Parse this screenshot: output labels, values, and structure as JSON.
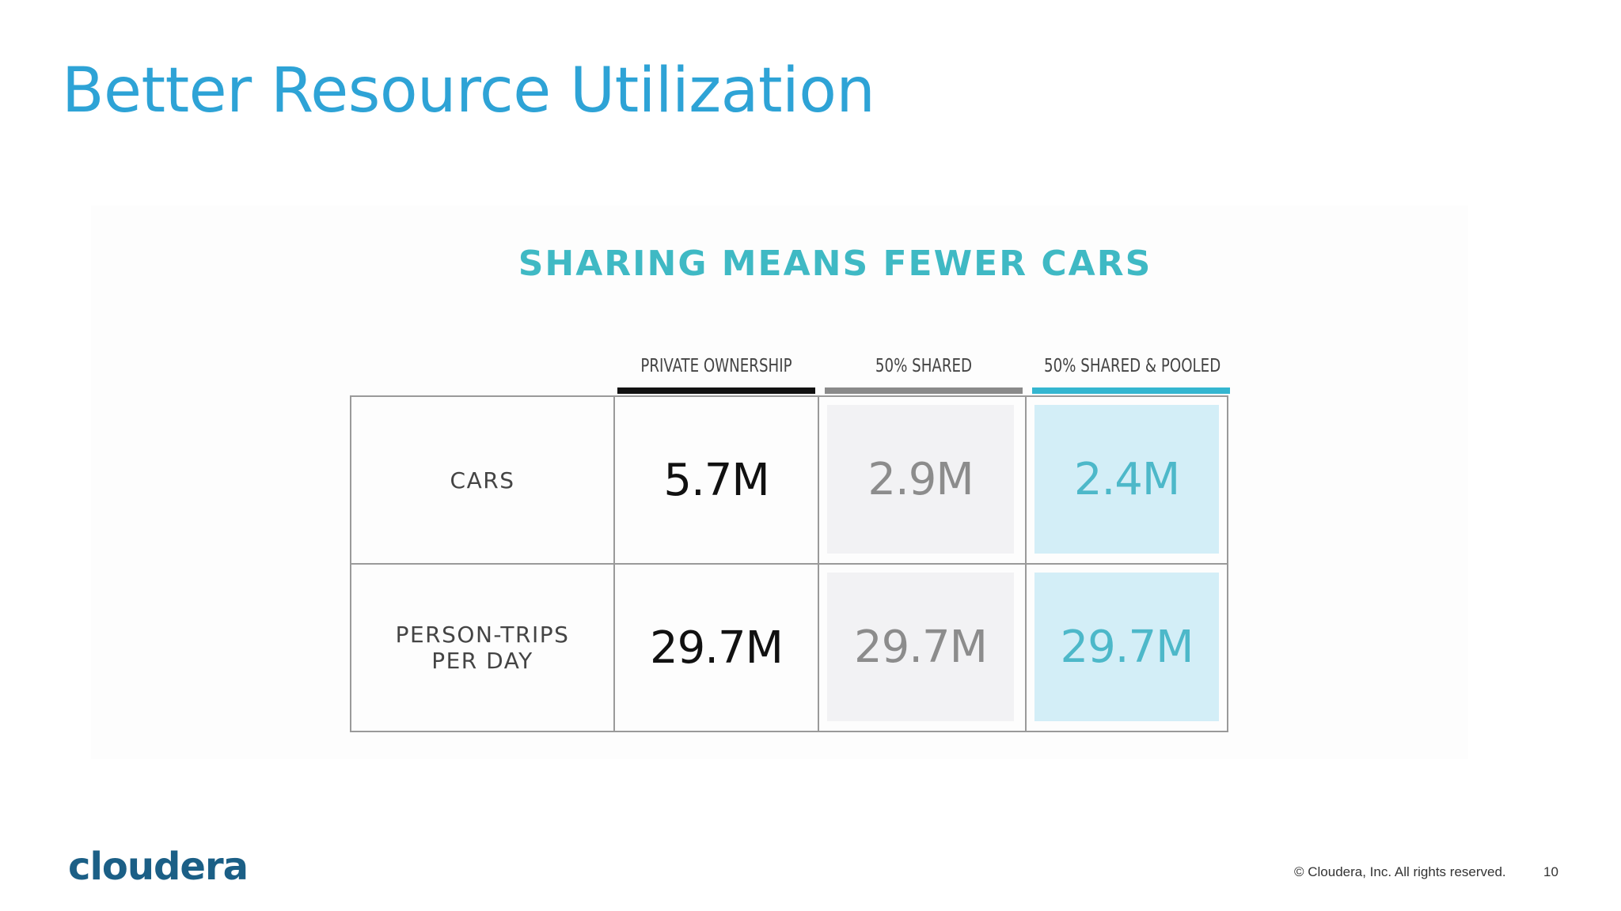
{
  "slide": {
    "title": "Better Resource Utilization",
    "footer": "© Cloudera, Inc. All rights reserved.",
    "page_number": "10",
    "logo_text": "cloudera"
  },
  "figure": {
    "title": "SHARING MEANS FEWER CARS",
    "columns": [
      {
        "label": "PRIVATE OWNERSHIP",
        "bar_color": "#111111"
      },
      {
        "label": "50% SHARED",
        "bar_color": "#8a8a8a"
      },
      {
        "label": "50% SHARED & POOLED",
        "bar_color": "#34b6d0"
      }
    ],
    "rows": [
      {
        "label_lines": [
          "CARS"
        ],
        "values": [
          "5.7M",
          "2.9M",
          "2.4M"
        ]
      },
      {
        "label_lines": [
          "PERSON-TRIPS",
          "PER DAY"
        ],
        "values": [
          "29.7M",
          "29.7M",
          "29.7M"
        ]
      }
    ]
  }
}
